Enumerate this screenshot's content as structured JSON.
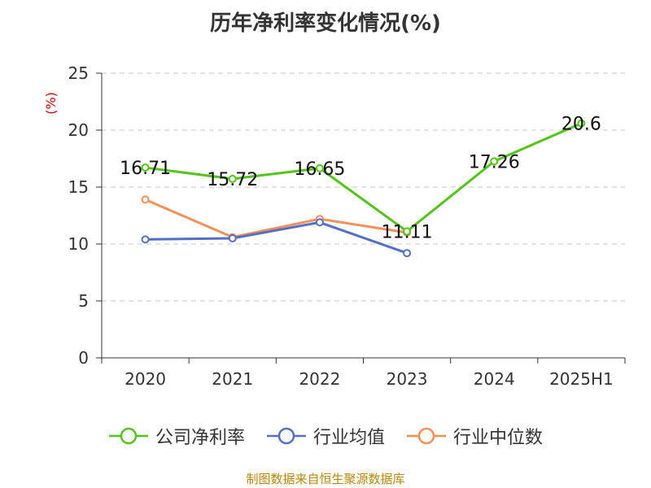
{
  "title": "历年净利率变化情况(%)",
  "source_note": "制图数据来自恒生聚源数据库",
  "chart_data": {
    "type": "line",
    "title": "历年净利率变化情况(%)",
    "ylabel": "(%)",
    "xlabel": "",
    "categories": [
      "2020",
      "2021",
      "2022",
      "2023",
      "2024",
      "2025H1"
    ],
    "ylim": [
      0,
      25
    ],
    "yticks": [
      0,
      5,
      10,
      15,
      20,
      25
    ],
    "grid": true,
    "legend_position": "bottom",
    "series": [
      {
        "name": "公司净利率",
        "color": "#52c41a",
        "values": [
          16.71,
          15.72,
          16.65,
          11.11,
          17.26,
          20.6
        ],
        "labels": [
          "16.71",
          "15.72",
          "16.65",
          "11.11",
          "17.26",
          "20.6"
        ]
      },
      {
        "name": "行业均值",
        "color": "#5470c6",
        "values": [
          10.4,
          10.5,
          11.9,
          9.2,
          null,
          null
        ]
      },
      {
        "name": "行业中位数",
        "color": "#f0905a",
        "values": [
          13.9,
          10.6,
          12.2,
          11.0,
          null,
          null
        ]
      }
    ]
  }
}
